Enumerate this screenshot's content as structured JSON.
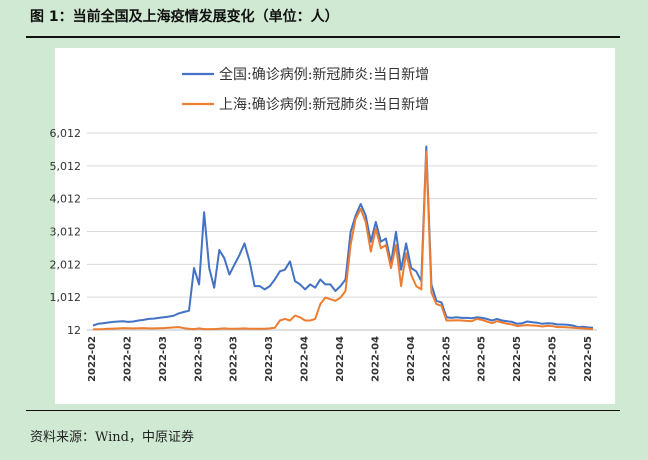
{
  "figure_title": "图 1：当前全国及上海疫情发展变化（单位：人）",
  "source": "资料来源：Wind，中原证券",
  "chart_data": {
    "type": "line",
    "title": "",
    "xlabel": "",
    "ylabel": "",
    "ylim": [
      12,
      6012
    ],
    "yticks": [
      12,
      1012,
      2012,
      3012,
      4012,
      5012,
      6012
    ],
    "ytick_labels": [
      "12",
      "1,012",
      "2,012",
      "3,012",
      "4,012",
      "5,012",
      "6,012"
    ],
    "legend_position": "top-center",
    "grid": "horizontal",
    "x_tick_labels": [
      "2022-02",
      "2022-02",
      "2022-03",
      "2022-03",
      "2022-03",
      "2022-03",
      "2022-04",
      "2022-04",
      "2022-04",
      "2022-04",
      "2022-05",
      "2022-05",
      "2022-05",
      "2022-05",
      "2022-05"
    ],
    "series": [
      {
        "name": "全国:确诊病例:新冠肺炎:当日新增",
        "color": "#4472c4",
        "values": [
          150,
          200,
          220,
          240,
          260,
          270,
          280,
          260,
          270,
          300,
          320,
          350,
          360,
          380,
          400,
          420,
          450,
          520,
          560,
          600,
          1900,
          1400,
          3600,
          1900,
          1300,
          2450,
          2200,
          1700,
          2000,
          2300,
          2650,
          2100,
          1350,
          1350,
          1250,
          1350,
          1550,
          1800,
          1850,
          2100,
          1500,
          1400,
          1250,
          1400,
          1300,
          1550,
          1400,
          1400,
          1200,
          1350,
          1550,
          3000,
          3500,
          3850,
          3500,
          2700,
          3300,
          2700,
          2800,
          2050,
          3000,
          1850,
          2650,
          1900,
          1800,
          1500,
          5600,
          1400,
          900,
          850,
          400,
          380,
          400,
          380,
          380,
          370,
          400,
          380,
          350,
          300,
          350,
          300,
          280,
          260,
          200,
          220,
          270,
          250,
          230,
          200,
          220,
          210,
          180,
          180,
          170,
          150,
          100,
          110,
          90,
          80
        ]
      },
      {
        "name": "上海:确诊病例:新冠肺炎:当日新增",
        "color": "#ed7d31",
        "values": [
          30,
          35,
          40,
          50,
          55,
          60,
          70,
          65,
          60,
          65,
          70,
          60,
          60,
          65,
          70,
          80,
          90,
          100,
          70,
          50,
          40,
          60,
          40,
          40,
          40,
          50,
          60,
          50,
          50,
          55,
          60,
          50,
          50,
          50,
          50,
          60,
          80,
          300,
          350,
          300,
          450,
          400,
          300,
          300,
          350,
          800,
          1000,
          950,
          900,
          1000,
          1200,
          2600,
          3400,
          3700,
          3300,
          2400,
          3100,
          2500,
          2600,
          1900,
          2600,
          1350,
          2350,
          1700,
          1350,
          1250,
          5450,
          1150,
          800,
          750,
          300,
          300,
          310,
          300,
          290,
          280,
          350,
          320,
          270,
          220,
          280,
          240,
          200,
          180,
          130,
          150,
          160,
          150,
          140,
          120,
          140,
          130,
          100,
          100,
          90,
          80,
          70,
          60,
          50,
          40
        ]
      }
    ]
  }
}
